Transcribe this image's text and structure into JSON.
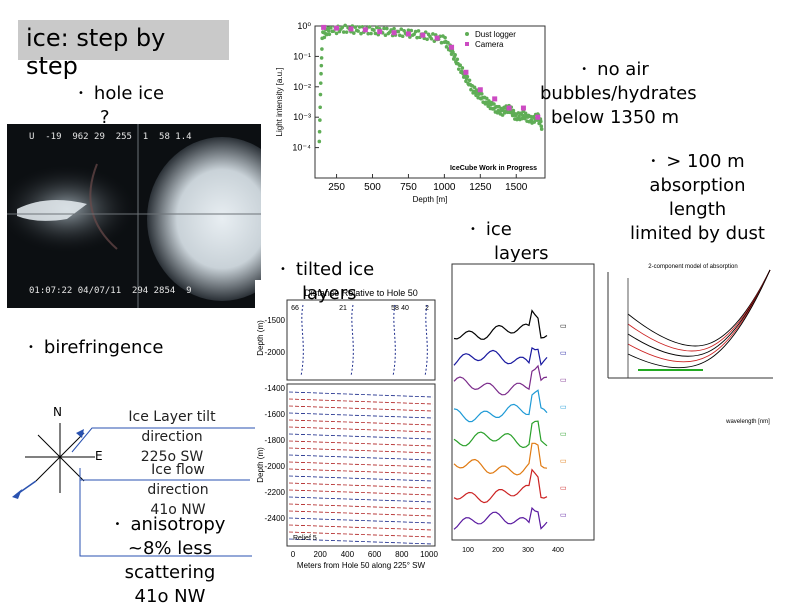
{
  "slide": {
    "title_line1": "ice: step by",
    "title_line2": "step",
    "bullets": {
      "hole_ice": [
        "hole ice",
        "?"
      ],
      "birefringence": "birefringence",
      "no_air": [
        "no air",
        "bubbles/hydrates",
        "below 1350 m"
      ],
      "absorption": [
        "> 100 m",
        "absorption",
        "length",
        "limited by dust"
      ],
      "ice_layers": [
        "ice",
        "layers"
      ],
      "tilted": [
        "tilted ice",
        "layers"
      ],
      "anisotropy": [
        "anisotropy",
        "~8% less",
        "scattering",
        "41o NW"
      ]
    },
    "compass": {
      "n": "N",
      "e": "E"
    },
    "tilt_label": [
      "Ice Layer tilt",
      "direction",
      "225o SW"
    ],
    "flow_label": [
      "Ice flow",
      "direction",
      "41o NW"
    ],
    "video_osd": {
      "top": "U  -19  962 29  255  1  58 1.4",
      "bottom": "01:07:22 04/07/11  294 2854  9"
    }
  },
  "chart_data": [
    {
      "type": "scatter",
      "title": "",
      "xlabel": "Depth [m]",
      "ylabel": "Light intensity [a.u.]",
      "xlim": [
        100,
        1700
      ],
      "ylim": [
        1e-05,
        1
      ],
      "yscale": "log",
      "xticks": [
        "250",
        "500",
        "750",
        "1000",
        "1250",
        "1500"
      ],
      "yticks": [
        "10^0",
        "10^-1",
        "10^-2",
        "10^-3",
        "10^-4"
      ],
      "legend": [
        "Dust logger",
        "Camera"
      ],
      "legend_position": "top-right",
      "annotation": "IceCube Work in Progress",
      "colors": {
        "dust_logger": "#5fad56",
        "camera": "#cc4bc2"
      },
      "series": [
        {
          "name": "Dust logger",
          "x": [
            130,
            150,
            200,
            300,
            400,
            500,
            600,
            700,
            800,
            900,
            1000,
            1050,
            1100,
            1150,
            1200,
            1250,
            1300,
            1350,
            1400,
            1450,
            1500,
            1550,
            1600,
            1650,
            1680
          ],
          "y": [
            0.0002,
            0.5,
            0.7,
            0.8,
            0.75,
            0.7,
            0.65,
            0.6,
            0.55,
            0.45,
            0.35,
            0.15,
            0.05,
            0.02,
            0.008,
            0.005,
            0.003,
            0.002,
            0.0015,
            0.002,
            0.001,
            0.0012,
            0.0008,
            0.001,
            0.0005
          ]
        },
        {
          "name": "Camera",
          "x": [
            160,
            250,
            350,
            450,
            550,
            650,
            750,
            850,
            950,
            1050,
            1150,
            1250,
            1350,
            1450,
            1550,
            1650
          ],
          "y": [
            0.9,
            0.85,
            0.8,
            0.75,
            0.65,
            0.6,
            0.55,
            0.5,
            0.4,
            0.2,
            0.03,
            0.008,
            0.004,
            0.002,
            0.002,
            0.001
          ]
        }
      ]
    },
    {
      "type": "line",
      "title": "Distance Relative to Hole 50",
      "xlabel": "Meters from Hole 50 along 225° SW",
      "ylabel": "Depth (m)",
      "xticks": [
        "0",
        "200",
        "400",
        "600",
        "800",
        "1000"
      ],
      "yticks_top": [
        "-1500",
        "-2000"
      ],
      "yticks_bottom": [
        "-1400",
        "-1600",
        "-1800",
        "-2000",
        "-2200",
        "-2400"
      ],
      "column_labels": [
        "66",
        "21",
        "58",
        "40",
        "2"
      ],
      "corner_label": "Relief 5"
    },
    {
      "type": "line",
      "title": "",
      "xticks": [
        "100",
        "200",
        "300",
        "400"
      ],
      "series_colors": [
        "#000000",
        "#1a1aa0",
        "#7a2a8a",
        "#1e9ad6",
        "#2aa02a",
        "#e07a12",
        "#cc2222",
        "#5a1aa0"
      ]
    },
    {
      "type": "line",
      "title": "2-component model of absorption",
      "xlabel": "wavelength [nm]",
      "series_colors": [
        "#000000",
        "#cc2222",
        "#22aa22"
      ]
    }
  ]
}
